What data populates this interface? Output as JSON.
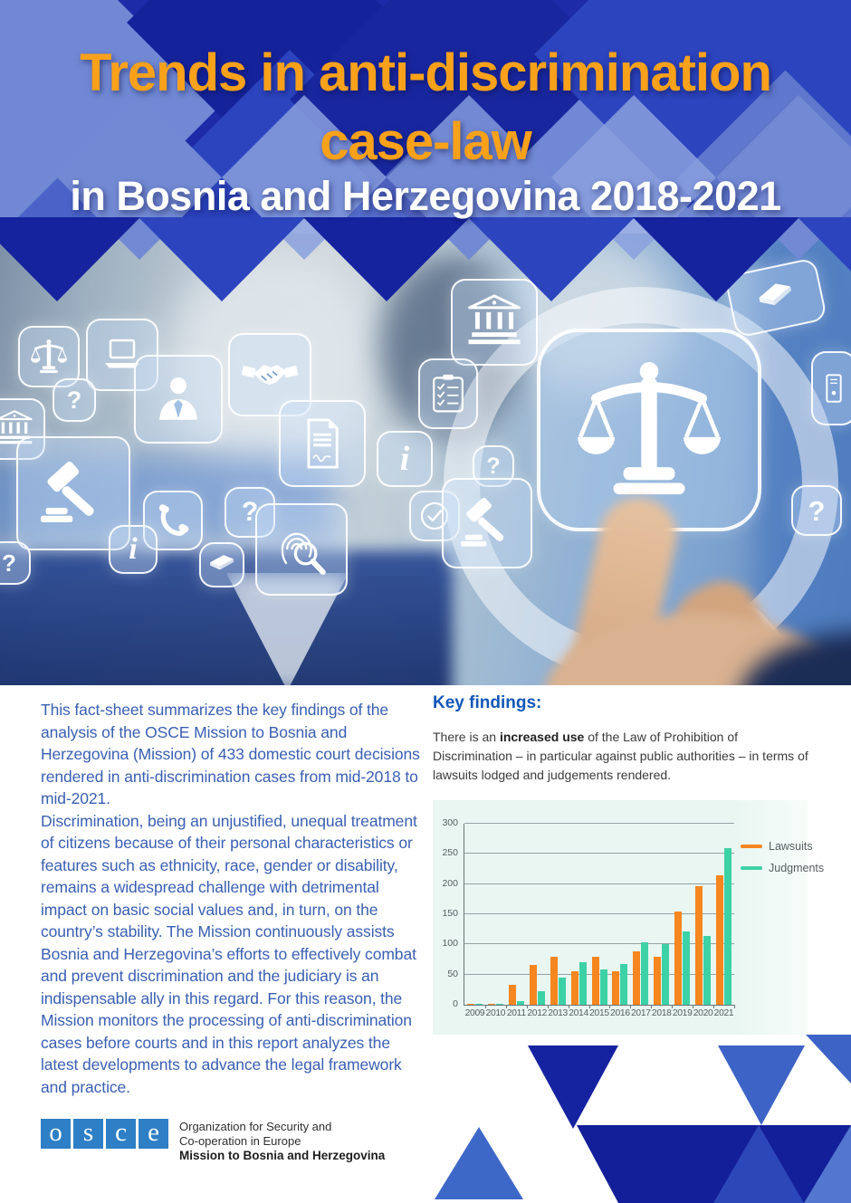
{
  "header": {
    "title_line1": "Trends in anti-discrimination",
    "title_line2": "case-law",
    "subtitle": "in Bosnia and Herzegovina 2018-2021",
    "title_color": "#F9A11B",
    "subtitle_color": "#FFFFFF"
  },
  "intro": {
    "paragraph1": "This fact-sheet summarizes the key findings of the analysis of the OSCE Mission to Bosnia and Herzegovina (Mission) of 433 domestic court decisions rendered in anti-discrimination cases from mid-2018 to mid-2021.",
    "paragraph2": "Discrimination, being an unjustified, unequal treatment of citizens because of their personal characteristics or features such as ethnicity, race, gender or disability, remains a widespread challenge with detrimental impact on basic social values and, in turn, on the country’s stability. The Mission continuously assists Bosnia and Herzegovina’s efforts to effectively combat and prevent discrimination and the judiciary is an indispensable ally in this regard. For this reason, the Mission monitors the processing of anti-discrimination cases before courts and in this report analyzes the latest developments to advance the legal framework and practice."
  },
  "key_findings": {
    "heading": "Key findings:",
    "text_prefix": "There is an ",
    "text_bold": "increased use",
    "text_suffix": " of the Law of Prohibition of Discrimination – in particular against public authorities – in terms of lawsuits lodged and judgements rendered."
  },
  "chart_data": {
    "type": "bar",
    "title": "",
    "categories": [
      "2009",
      "2010",
      "2011",
      "2012",
      "2013",
      "2014",
      "2015",
      "2016",
      "2017",
      "2018",
      "2019",
      "2020",
      "2021"
    ],
    "series": [
      {
        "name": "Lawsuits",
        "color": "#F6861F",
        "values": [
          2,
          1,
          33,
          66,
          79,
          55,
          80,
          56,
          89,
          79,
          154,
          197,
          215
        ]
      },
      {
        "name": "Judgments",
        "color": "#3DD1A6",
        "values": [
          1,
          1,
          6,
          22,
          45,
          71,
          58,
          68,
          104,
          100,
          121,
          114,
          260
        ]
      }
    ],
    "ylim": [
      0,
      300
    ],
    "ytick_step": 50,
    "grid": true,
    "legend_position": "top-right",
    "background": "#E9F6F2"
  },
  "photo": {
    "glyph_question": "?",
    "glyph_info": "i",
    "icons": [
      "scales-of-justice",
      "laptop",
      "question-mark",
      "courthouse",
      "person",
      "handshake",
      "signed-document",
      "info",
      "gavel",
      "phone-handset",
      "fingerprint-magnifier",
      "book",
      "checklist",
      "check-circle",
      "computer-tower",
      "magnifying-glass",
      "scales-of-justice-large"
    ]
  },
  "footer": {
    "logo_letters": [
      "o",
      "s",
      "c",
      "e"
    ],
    "org_line1": "Organization for Security and",
    "org_line2": "Co-operation in Europe",
    "mission": "Mission to Bosnia and Herzegovina",
    "osce_blue": "#2E7FC5"
  },
  "colors": {
    "header_navy": "#1D2BA8",
    "body_text_blue": "#3A5FB2",
    "heading_blue": "#1257B8",
    "lawsuits_orange": "#F6861F",
    "judgments_teal": "#3DD1A6"
  }
}
